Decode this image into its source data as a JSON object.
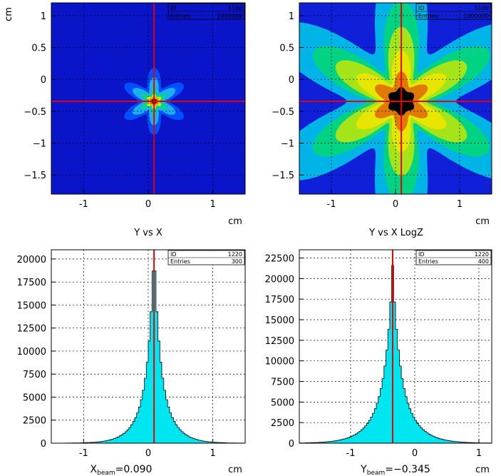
{
  "chart_data": [
    {
      "type": "heatmap",
      "id": "top-left",
      "title": "Y vs X",
      "xlabel": "cm",
      "ylabel": "cm",
      "xlim": [
        -1.5,
        1.5
      ],
      "ylim": [
        -1.8,
        1.2
      ],
      "x_ticks": [
        -1,
        0,
        1
      ],
      "y_ticks": [
        1,
        0.5,
        0,
        -0.5,
        -1,
        -1.5
      ],
      "y_tick_labels": [
        "1",
        "0.5",
        "0",
        "−0.5",
        "−1",
        "−1.5"
      ],
      "grid": true,
      "scale": "linear",
      "beam_x": 0.09,
      "beam_y": -0.345,
      "stats_box": {
        "id_label": "ID",
        "id_value": "1100",
        "entries_label": "Entries",
        "entries_value": "1000000"
      },
      "colors": {
        "background": "#0a14c8",
        "contour": [
          "#0050ff",
          "#1cb0ee",
          "#00d890",
          "#e8e800",
          "#e08000",
          "#000000"
        ]
      }
    },
    {
      "type": "heatmap",
      "id": "top-right",
      "title": "Y vs X LogZ",
      "xlabel": "cm",
      "ylabel": "",
      "xlim": [
        -1.5,
        1.5
      ],
      "ylim": [
        -1.8,
        1.2
      ],
      "x_ticks": [
        -1,
        0,
        1
      ],
      "y_ticks": [
        1,
        0.5,
        0,
        -0.5,
        -1,
        -1.5
      ],
      "y_tick_labels": [
        "1",
        "0.5",
        "0",
        "−0.5",
        "−1",
        "−1.5"
      ],
      "grid": true,
      "scale": "log",
      "beam_x": 0.09,
      "beam_y": -0.345,
      "stats_box": {
        "id_label": "ID",
        "id_value": "1100",
        "entries_label": "Entries",
        "entries_value": "1000000"
      },
      "colors": {
        "levels": [
          "#1020d8",
          "#00b4e8",
          "#00d484",
          "#a6e41a",
          "#e6e600",
          "#e07a00",
          "#000000"
        ]
      }
    },
    {
      "type": "bar",
      "id": "bottom-left",
      "title": "",
      "xlabel": "cm",
      "x_annotation": {
        "var": "X",
        "sub": "beam",
        "text": "=0.090"
      },
      "xlim": [
        -1.5,
        1.5
      ],
      "ylim": [
        0,
        21000
      ],
      "x_ticks": [
        -1,
        0,
        1
      ],
      "y_ticks": [
        0,
        2500,
        5000,
        7500,
        10000,
        12500,
        15000,
        17500,
        20000
      ],
      "y_tick_labels": [
        "0",
        "2500",
        "5000",
        "7500",
        "10000",
        "12500",
        "15000",
        "17500",
        "20000"
      ],
      "grid": true,
      "peak_x": 0.09,
      "peak": 18700,
      "width_core": 0.07,
      "width_tail": 0.2,
      "core_weight": 0.5,
      "bins": 100,
      "beam_line": 0.09,
      "stats_box": {
        "id_label": "ID",
        "id_value": "1220",
        "entries_label": "Entries",
        "entries_value": "300"
      },
      "colors": {
        "fill": "#00e6f0",
        "edge": "#000000",
        "beam": "#e60000"
      }
    },
    {
      "type": "bar",
      "id": "bottom-right",
      "title": "",
      "xlabel": "cm",
      "x_annotation": {
        "var": "Y",
        "sub": "beam",
        "text": "=−0.345"
      },
      "xlim": [
        -1.8,
        1.2
      ],
      "ylim": [
        0,
        23500
      ],
      "x_ticks": [
        -1,
        0,
        1
      ],
      "y_ticks": [
        0,
        2500,
        5000,
        7500,
        10000,
        12500,
        15000,
        17500,
        20000,
        22500
      ],
      "y_tick_labels": [
        "0",
        "2500",
        "5000",
        "7500",
        "10000",
        "12500",
        "15000",
        "17500",
        "20000",
        "22500"
      ],
      "grid": true,
      "peak_x": -0.345,
      "peak": 21600,
      "width_core": 0.08,
      "width_tail": 0.24,
      "core_weight": 0.45,
      "bins": 100,
      "beam_line": -0.345,
      "stats_box": {
        "id_label": "ID",
        "id_value": "1220",
        "entries_label": "Entries",
        "entries_value": "400"
      },
      "colors": {
        "fill": "#00e6f0",
        "edge": "#000000",
        "beam": "#e60000"
      }
    }
  ]
}
